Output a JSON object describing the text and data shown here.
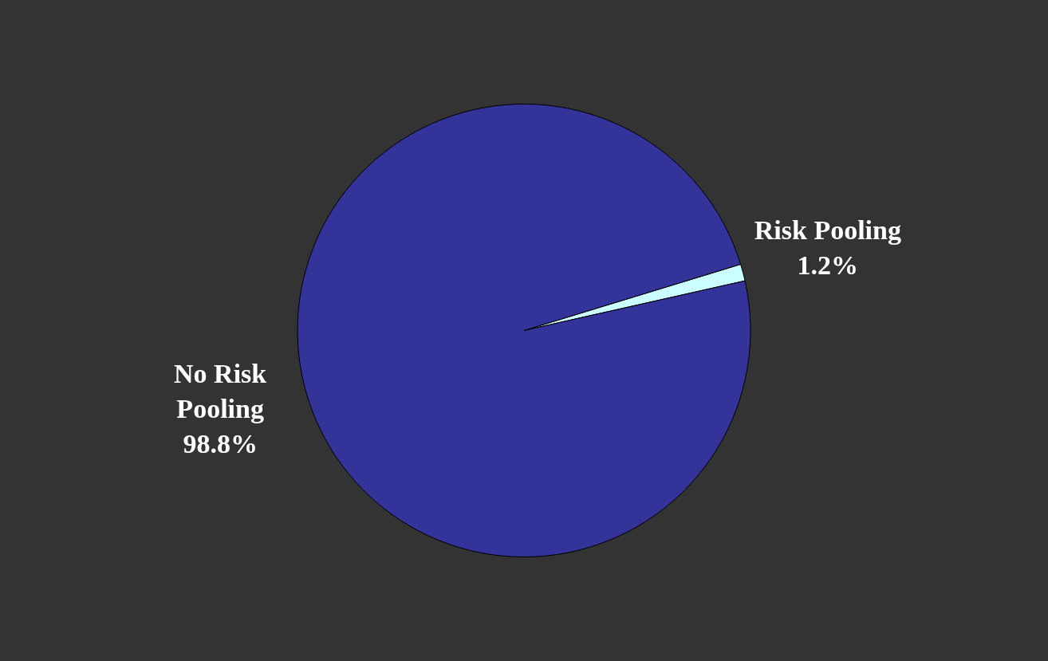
{
  "chart_data": {
    "type": "pie",
    "categories": [
      "Risk Pooling",
      "No Risk Pooling"
    ],
    "values": [
      1.2,
      98.8
    ],
    "colors": [
      "#ccffff",
      "#333399"
    ],
    "value_labels": [
      "1.2%",
      "98.8%"
    ],
    "legend": false
  }
}
